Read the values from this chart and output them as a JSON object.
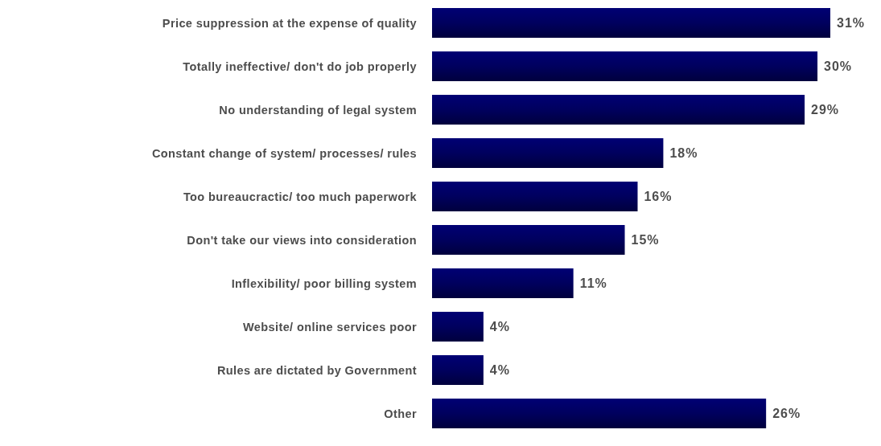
{
  "chart_data": {
    "type": "bar",
    "orientation": "horizontal",
    "categories": [
      "Price suppression at the expense of quality",
      "Totally ineffective/ don't do job properly",
      "No understanding of legal system",
      "Constant change of system/ processes/ rules",
      "Too bureaucractic/ too much paperwork",
      "Don't take our views into consideration",
      "Inflexibility/ poor billing system",
      "Website/ online services poor",
      "Rules are dictated by Government",
      "Other"
    ],
    "values": [
      31,
      30,
      29,
      18,
      16,
      15,
      11,
      4,
      4,
      26
    ],
    "value_labels": [
      "31%",
      "30%",
      "29%",
      "18%",
      "16%",
      "15%",
      "11%",
      "4%",
      "4%",
      "26%"
    ],
    "color": "#00005e"
  }
}
